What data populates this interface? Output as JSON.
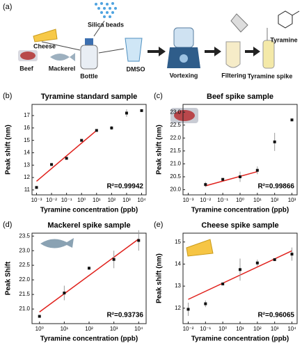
{
  "workflow": {
    "panel_label": "(a)",
    "silica": "Silica beads",
    "cheese": "Cheese",
    "beef": "Beef",
    "mackerel": "Mackerel",
    "bottle": "Bottle",
    "dmso": "DMSO",
    "vortexing": "Vortexing",
    "filtering": "Filtering",
    "spike": "Tyramine spike",
    "tyramine": "Tyramine"
  },
  "chart_data": [
    {
      "type": "scatter",
      "panel_label": "(b)",
      "title": "Tyramine standard sample",
      "x_label": "Tyramine concentration (ppb)",
      "y_label": "Peak shift (nm)",
      "xscale": "log",
      "xlim": [
        0.0005,
        20000
      ],
      "ylim": [
        10.6,
        17.9
      ],
      "xticks": [
        {
          "value": 0.001,
          "label": "10⁻³"
        },
        {
          "value": 0.01,
          "label": "10⁻²"
        },
        {
          "value": 0.1,
          "label": "10⁻¹"
        },
        {
          "value": 1,
          "label": "10⁰"
        },
        {
          "value": 10,
          "label": "10¹"
        },
        {
          "value": 100,
          "label": "10²"
        },
        {
          "value": 1000,
          "label": "10³"
        },
        {
          "value": 10000,
          "label": "10⁴"
        }
      ],
      "yticks": [
        11,
        12,
        13,
        14,
        15,
        16,
        17
      ],
      "x": [
        0.001,
        0.01,
        0.1,
        1,
        10,
        100,
        1000,
        10000
      ],
      "values": [
        11.2,
        13.05,
        13.55,
        15.0,
        15.8,
        16.0,
        17.2,
        17.4
      ],
      "errors": [
        0.1,
        0.05,
        0.1,
        0.05,
        0.05,
        0.15,
        0.3,
        0.1
      ],
      "color": "#111111",
      "fit": {
        "x": [
          0.001,
          10
        ],
        "y": [
          11.7,
          15.8
        ],
        "color": "#e0201b"
      },
      "annotation": "R²=0.99942"
    },
    {
      "type": "scatter",
      "panel_label": "(c)",
      "title": "Beef spike sample",
      "x_label": "Tyramine concentration (ppb)",
      "y_label": "Peak shift (nm)",
      "xscale": "log",
      "xlim": [
        0.0005,
        2000
      ],
      "ylim": [
        19.8,
        23.3
      ],
      "xticks": [
        {
          "value": 0.001,
          "label": "10⁻³"
        },
        {
          "value": 0.01,
          "label": "10⁻²"
        },
        {
          "value": 0.1,
          "label": "10⁻¹"
        },
        {
          "value": 1,
          "label": "10⁰"
        },
        {
          "value": 10,
          "label": "10¹"
        },
        {
          "value": 100,
          "label": "10²"
        },
        {
          "value": 1000,
          "label": "10³"
        }
      ],
      "yticks": [
        {
          "value": 20,
          "label": "20.0"
        },
        20.5,
        {
          "value": 21,
          "label": "21.0"
        },
        21.5,
        {
          "value": 22,
          "label": "22.0"
        },
        22.5,
        {
          "value": 23,
          "label": "23.0"
        }
      ],
      "x": [
        0.01,
        0.1,
        1,
        10,
        100,
        1000
      ],
      "values": [
        20.2,
        20.4,
        20.5,
        20.75,
        21.85,
        22.7
      ],
      "errors": [
        0.1,
        0.05,
        0.2,
        0.15,
        0.35,
        0.03
      ],
      "color": "#111111",
      "fit": {
        "x": [
          0.01,
          10
        ],
        "y": [
          20.15,
          20.7
        ],
        "color": "#e0201b"
      },
      "annotation": "R²=0.99866"
    },
    {
      "type": "scatter",
      "panel_label": "(d)",
      "title": "Mackerel spike sample",
      "x_label": "Tyramine concentration (ppb)",
      "y_label": "Peak Shift",
      "xscale": "log",
      "xlim": [
        0.5,
        20000
      ],
      "ylim": [
        20.5,
        23.6
      ],
      "xticks": [
        {
          "value": 1,
          "label": "10⁰"
        },
        {
          "value": 10,
          "label": "10¹"
        },
        {
          "value": 100,
          "label": "10²"
        },
        {
          "value": 1000,
          "label": "10³"
        },
        {
          "value": 10000,
          "label": "10⁴"
        }
      ],
      "yticks": [
        {
          "value": 21,
          "label": "21.0"
        },
        21.5,
        {
          "value": 22,
          "label": "22.0"
        },
        22.5,
        {
          "value": 23,
          "label": "23.0"
        },
        23.5
      ],
      "x": [
        1,
        10,
        100,
        1000,
        10000
      ],
      "values": [
        20.75,
        21.55,
        22.4,
        22.7,
        23.35
      ],
      "errors": [
        0.03,
        0.25,
        0.05,
        0.3,
        0.35
      ],
      "color": "#111111",
      "fit": {
        "x": [
          1,
          10000
        ],
        "y": [
          20.9,
          23.4
        ],
        "color": "#e0201b"
      },
      "annotation": "R²=0.93736"
    },
    {
      "type": "scatter",
      "panel_label": "(e)",
      "title": "Cheese spike sample",
      "x_label": "Tyramine concentration (ppb)",
      "y_label": "Peak shift (nm)",
      "xscale": "log",
      "xlim": [
        0.005,
        20000
      ],
      "ylim": [
        11.3,
        15.4
      ],
      "xticks": [
        {
          "value": 0.01,
          "label": "10⁻²"
        },
        {
          "value": 0.1,
          "label": "10⁻¹"
        },
        {
          "value": 1,
          "label": "10⁰"
        },
        {
          "value": 10,
          "label": "10¹"
        },
        {
          "value": 100,
          "label": "10²"
        },
        {
          "value": 1000,
          "label": "10³"
        },
        {
          "value": 10000,
          "label": "10⁴"
        }
      ],
      "yticks": [
        12,
        13,
        14,
        15
      ],
      "x": [
        0.01,
        0.1,
        1,
        10,
        100,
        1000,
        10000
      ],
      "values": [
        11.95,
        12.2,
        13.1,
        13.75,
        14.05,
        14.2,
        14.45
      ],
      "errors": [
        0.3,
        0.15,
        0.05,
        0.5,
        0.15,
        0.05,
        0.3
      ],
      "color": "#111111",
      "fit": {
        "x": [
          0.01,
          10000
        ],
        "y": [
          12.4,
          14.6
        ],
        "color": "#e0201b"
      },
      "annotation": "R²=0.96065"
    }
  ]
}
